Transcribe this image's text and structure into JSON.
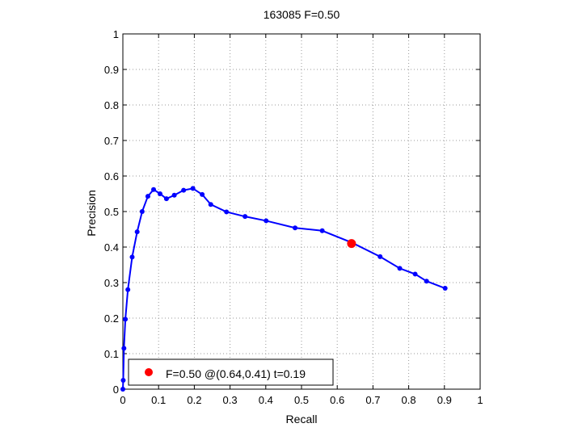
{
  "chart_data": {
    "type": "line",
    "title": "163085 F=0.50",
    "xlabel": "Recall",
    "ylabel": "Precision",
    "xlim": [
      0,
      1
    ],
    "ylim": [
      0,
      1
    ],
    "grid": true,
    "x_ticks": [
      "0",
      "0.1",
      "0.2",
      "0.3",
      "0.4",
      "0.5",
      "0.6",
      "0.7",
      "0.8",
      "0.9",
      "1"
    ],
    "y_ticks": [
      "0",
      "0.1",
      "0.2",
      "0.3",
      "0.4",
      "0.5",
      "0.6",
      "0.7",
      "0.8",
      "0.9",
      "1"
    ],
    "series": [
      {
        "color": "#0000ff",
        "points": [
          [
            0.0,
            0.0
          ],
          [
            0.001,
            0.025
          ],
          [
            0.003,
            0.115
          ],
          [
            0.007,
            0.197
          ],
          [
            0.014,
            0.28
          ],
          [
            0.026,
            0.372
          ],
          [
            0.04,
            0.443
          ],
          [
            0.054,
            0.5
          ],
          [
            0.07,
            0.543
          ],
          [
            0.086,
            0.562
          ],
          [
            0.104,
            0.55
          ],
          [
            0.122,
            0.536
          ],
          [
            0.144,
            0.546
          ],
          [
            0.17,
            0.56
          ],
          [
            0.196,
            0.565
          ],
          [
            0.222,
            0.548
          ],
          [
            0.246,
            0.52
          ],
          [
            0.29,
            0.499
          ],
          [
            0.342,
            0.486
          ],
          [
            0.401,
            0.474
          ],
          [
            0.482,
            0.454
          ],
          [
            0.558,
            0.446
          ],
          [
            0.642,
            0.412
          ],
          [
            0.72,
            0.373
          ],
          [
            0.775,
            0.34
          ],
          [
            0.818,
            0.324
          ],
          [
            0.85,
            0.304
          ],
          [
            0.902,
            0.284
          ]
        ]
      }
    ],
    "marker": {
      "x": 0.64,
      "y": 0.41,
      "color": "#ff0000"
    },
    "legend": {
      "placement": "bottom-left",
      "text": "F=0.50 @(0.64,0.41) t=0.19"
    }
  }
}
